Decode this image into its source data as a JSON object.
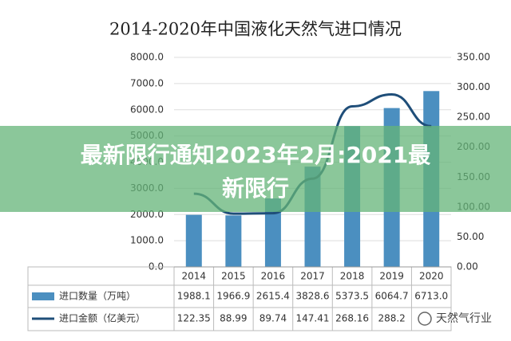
{
  "chart_data": {
    "type": "bar-line",
    "title": "2014-2020年中国液化天然气进口情况",
    "categories": [
      "2014",
      "2015",
      "2016",
      "2017",
      "2018",
      "2019",
      "2020"
    ],
    "series": [
      {
        "name": "进口数量（万吨）",
        "color": "#4b8fc0",
        "values": [
          1988.1,
          1966.9,
          2615.4,
          3828.6,
          5373.5,
          6064.7,
          6713.0
        ],
        "value_labels": [
          "1988.1",
          "1966.9",
          "2615.4",
          "3828.6",
          "5373.5",
          "6064.7",
          "6713.0"
        ]
      },
      {
        "name": "进口金额（亿美元）",
        "color": "#1f4e79",
        "axis": "y2",
        "values": [
          122.35,
          88.99,
          89.74,
          147.41,
          268.16,
          288.2,
          235
        ],
        "value_labels": [
          "122.35",
          "88.99",
          "89.74",
          "147.41",
          "268.16",
          "288.2",
          null
        ]
      }
    ],
    "ylim": [
      0,
      8000
    ],
    "yticks": [
      {
        "value": 0,
        "label": "0.0"
      },
      {
        "value": 1000,
        "label": "1000.0"
      },
      {
        "value": 2000,
        "label": "2000.0"
      },
      {
        "value": 3000,
        "label": "3000.0"
      },
      {
        "value": 4000,
        "label": "4000.0"
      },
      {
        "value": 5000,
        "label": "5000.0"
      },
      {
        "value": 6000,
        "label": "6000.0"
      },
      {
        "value": 7000,
        "label": "7000.0"
      },
      {
        "value": 8000,
        "label": "8000.0"
      }
    ],
    "y2lim": [
      0,
      350
    ],
    "y2ticks": [
      {
        "value": 0,
        "label": "0.00"
      },
      {
        "value": 50,
        "label": "50.00"
      },
      {
        "value": 100,
        "label": "100.00"
      },
      {
        "value": 150,
        "label": "150.00"
      },
      {
        "value": 200,
        "label": "200.00"
      },
      {
        "value": 250,
        "label": "250.00"
      },
      {
        "value": 300,
        "label": "300.00"
      },
      {
        "value": 350,
        "label": "350.00"
      }
    ],
    "grid": true
  },
  "overlay": {
    "banner": [
      "最新限行通知2023年2月:2021最",
      "新限行"
    ],
    "watermark": "天然气行业"
  }
}
